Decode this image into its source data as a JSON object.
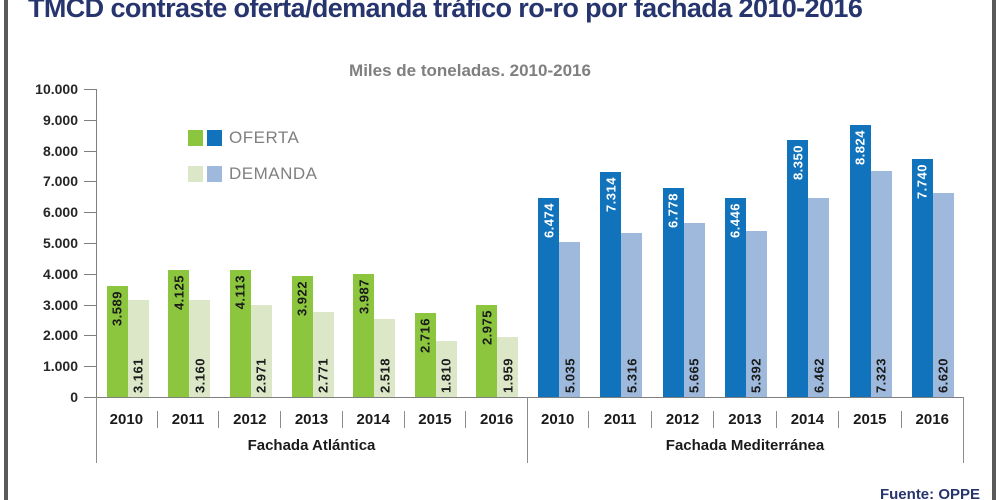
{
  "title": "TMCD contraste oferta/demanda tráfico ro-ro por fachada 2010-2016",
  "subtitle": "Miles de toneladas. 2010-2016",
  "source": "Fuente: OPPE",
  "colors": {
    "title": "#27356e",
    "axis": "#7f7f7f",
    "subtitle": "#7f7f7f",
    "legend_text": "#808080",
    "frame": "#58595b",
    "oferta_atlantica": "#8cc63f",
    "demanda_atlantica": "#dce7c8",
    "oferta_mediterranea": "#1173bc",
    "demanda_mediterranea": "#9eb9db"
  },
  "legend": [
    {
      "label": "OFERTA",
      "swatches": [
        "#8cc63f",
        "#1173bc"
      ]
    },
    {
      "label": "DEMANDA",
      "swatches": [
        "#dce7c8",
        "#9eb9db"
      ]
    }
  ],
  "chart_data": {
    "type": "bar",
    "title": "TMCD contraste oferta/demanda tráfico ro-ro por fachada 2010-2016",
    "subtitle": "Miles de toneladas. 2010-2016",
    "ylabel": "Miles de toneladas",
    "ylim": [
      0,
      10000
    ],
    "grid": false,
    "legend_position": "upper-left",
    "y_axis": {
      "min": 0,
      "max": 10000,
      "step": 1000,
      "tick_labels": [
        "10.000",
        "9.000",
        "8.000",
        "7.000",
        "6.000",
        "5.000",
        "4.000",
        "3.000",
        "2.000",
        "1.000",
        "0"
      ]
    },
    "groups": [
      {
        "key": "atlantica",
        "name": "Fachada Atlántica",
        "years": [
          "2010",
          "2011",
          "2012",
          "2013",
          "2014",
          "2015",
          "2016"
        ],
        "series": [
          {
            "name": "OFERTA",
            "color": "#8cc63f",
            "label_color": "#1a1a1a",
            "label_position": "top",
            "values": [
              3589,
              4125,
              4113,
              3922,
              3987,
              2716,
              2975
            ],
            "labels": [
              "3.589",
              "4.125",
              "4.113",
              "3.922",
              "3.987",
              "2.716",
              "2.975"
            ]
          },
          {
            "name": "DEMANDA",
            "color": "#dce7c8",
            "label_color": "#1a1a1a",
            "label_position": "bottom",
            "values": [
              3161,
              3160,
              2971,
              2771,
              2518,
              1810,
              1959
            ],
            "labels": [
              "3.161",
              "3.160",
              "2.971",
              "2.771",
              "2.518",
              "1.810",
              "1.959"
            ]
          }
        ]
      },
      {
        "key": "mediterranea",
        "name": "Fachada Mediterránea",
        "years": [
          "2010",
          "2011",
          "2012",
          "2013",
          "2014",
          "2015",
          "2016"
        ],
        "series": [
          {
            "name": "OFERTA",
            "color": "#1173bc",
            "label_color": "#ffffff",
            "label_position": "top",
            "values": [
              6474,
              7314,
              6778,
              6446,
              8350,
              8824,
              7740
            ],
            "labels": [
              "6.474",
              "7.314",
              "6.778",
              "6.446",
              "8.350",
              "8.824",
              "7.740"
            ]
          },
          {
            "name": "DEMANDA",
            "color": "#9eb9db",
            "label_color": "#1a1a1a",
            "label_position": "bottom",
            "values": [
              5035,
              5316,
              5665,
              5392,
              6462,
              7323,
              6620
            ],
            "labels": [
              "5.035",
              "5.316",
              "5.665",
              "5.392",
              "6.462",
              "7.323",
              "6.620"
            ]
          }
        ]
      }
    ]
  }
}
